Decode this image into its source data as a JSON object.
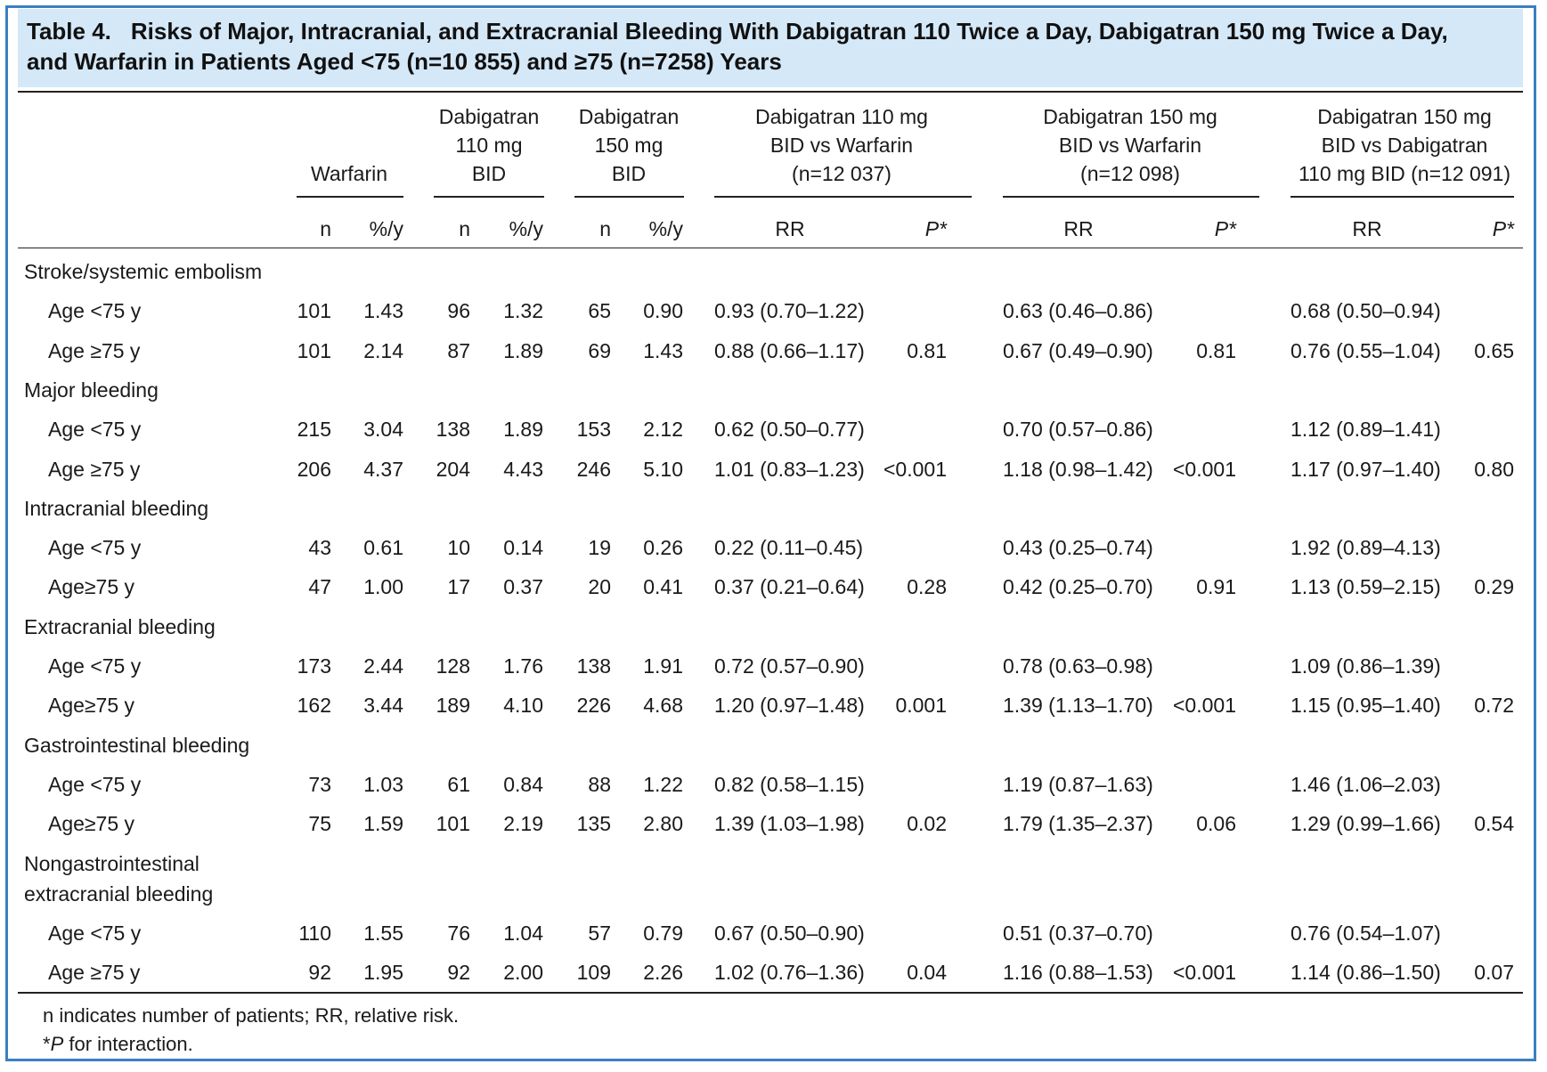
{
  "caption": {
    "number": "Table 4.",
    "line1": "Risks of Major, Intracranial, and Extracranial Bleeding With Dabigatran 110 Twice a Day, Dabigatran 150 mg Twice a Day,",
    "line2": "and Warfarin in Patients Aged <75 (n=10 855) and ≥75 (n=7258) Years"
  },
  "header": {
    "groups": [
      {
        "id": "warfarin",
        "lines": [
          "Warfarin"
        ]
      },
      {
        "id": "dab110",
        "lines": [
          "Dabigatran",
          "110 mg",
          "BID"
        ]
      },
      {
        "id": "dab150",
        "lines": [
          "Dabigatran",
          "150 mg",
          "BID"
        ]
      },
      {
        "id": "cmp1",
        "lines": [
          "Dabigatran 110 mg",
          "BID vs Warfarin",
          "(n=12 037)"
        ]
      },
      {
        "id": "cmp2",
        "lines": [
          "Dabigatran 150 mg",
          "BID vs Warfarin",
          "(n=12 098)"
        ]
      },
      {
        "id": "cmp3",
        "lines": [
          "Dabigatran 150 mg",
          "BID vs Dabigatran",
          "110 mg BID (n=12 091)"
        ]
      }
    ],
    "sub": {
      "n": "n",
      "rate": "%/y",
      "rr": "RR",
      "p": "P*"
    }
  },
  "sections": [
    {
      "title": [
        "Stroke/systemic embolism"
      ],
      "rows": [
        {
          "label": "Age <75 y",
          "w_n": "101",
          "w_r": "1.43",
          "d110_n": "96",
          "d110_r": "1.32",
          "d150_n": "65",
          "d150_r": "0.90",
          "rr1": "0.93 (0.70–1.22)",
          "p1": "",
          "rr2": "0.63 (0.46–0.86)",
          "p2": "",
          "rr3": "0.68 (0.50–0.94)",
          "p3": ""
        },
        {
          "label": "Age ≥75 y",
          "w_n": "101",
          "w_r": "2.14",
          "d110_n": "87",
          "d110_r": "1.89",
          "d150_n": "69",
          "d150_r": "1.43",
          "rr1": "0.88 (0.66–1.17)",
          "p1": "0.81",
          "rr2": "0.67 (0.49–0.90)",
          "p2": "0.81",
          "rr3": "0.76 (0.55–1.04)",
          "p3": "0.65"
        }
      ]
    },
    {
      "title": [
        "Major bleeding"
      ],
      "rows": [
        {
          "label": "Age <75 y",
          "w_n": "215",
          "w_r": "3.04",
          "d110_n": "138",
          "d110_r": "1.89",
          "d150_n": "153",
          "d150_r": "2.12",
          "rr1": "0.62 (0.50–0.77)",
          "p1": "",
          "rr2": "0.70 (0.57–0.86)",
          "p2": "",
          "rr3": "1.12 (0.89–1.41)",
          "p3": ""
        },
        {
          "label": "Age ≥75 y",
          "w_n": "206",
          "w_r": "4.37",
          "d110_n": "204",
          "d110_r": "4.43",
          "d150_n": "246",
          "d150_r": "5.10",
          "rr1": "1.01 (0.83–1.23)",
          "p1": "<0.001",
          "rr2": "1.18 (0.98–1.42)",
          "p2": "<0.001",
          "rr3": "1.17 (0.97–1.40)",
          "p3": "0.80"
        }
      ]
    },
    {
      "title": [
        "Intracranial bleeding"
      ],
      "rows": [
        {
          "label": "Age <75 y",
          "w_n": "43",
          "w_r": "0.61",
          "d110_n": "10",
          "d110_r": "0.14",
          "d150_n": "19",
          "d150_r": "0.26",
          "rr1": "0.22 (0.11–0.45)",
          "p1": "",
          "rr2": "0.43 (0.25–0.74)",
          "p2": "",
          "rr3": "1.92 (0.89–4.13)",
          "p3": ""
        },
        {
          "label": "Age≥75 y",
          "w_n": "47",
          "w_r": "1.00",
          "d110_n": "17",
          "d110_r": "0.37",
          "d150_n": "20",
          "d150_r": "0.41",
          "rr1": "0.37 (0.21–0.64)",
          "p1": "0.28",
          "rr2": "0.42 (0.25–0.70)",
          "p2": "0.91",
          "rr3": "1.13 (0.59–2.15)",
          "p3": "0.29"
        }
      ]
    },
    {
      "title": [
        "Extracranial bleeding"
      ],
      "rows": [
        {
          "label": "Age <75 y",
          "w_n": "173",
          "w_r": "2.44",
          "d110_n": "128",
          "d110_r": "1.76",
          "d150_n": "138",
          "d150_r": "1.91",
          "rr1": "0.72 (0.57–0.90)",
          "p1": "",
          "rr2": "0.78 (0.63–0.98)",
          "p2": "",
          "rr3": "1.09 (0.86–1.39)",
          "p3": ""
        },
        {
          "label": "Age≥75 y",
          "w_n": "162",
          "w_r": "3.44",
          "d110_n": "189",
          "d110_r": "4.10",
          "d150_n": "226",
          "d150_r": "4.68",
          "rr1": "1.20 (0.97–1.48)",
          "p1": "0.001",
          "rr2": "1.39 (1.13–1.70)",
          "p2": "<0.001",
          "rr3": "1.15 (0.95–1.40)",
          "p3": "0.72"
        }
      ]
    },
    {
      "title": [
        "Gastrointestinal bleeding"
      ],
      "rows": [
        {
          "label": "Age <75 y",
          "w_n": "73",
          "w_r": "1.03",
          "d110_n": "61",
          "d110_r": "0.84",
          "d150_n": "88",
          "d150_r": "1.22",
          "rr1": "0.82 (0.58–1.15)",
          "p1": "",
          "rr2": "1.19 (0.87–1.63)",
          "p2": "",
          "rr3": "1.46 (1.06–2.03)",
          "p3": ""
        },
        {
          "label": "Age≥75 y",
          "w_n": "75",
          "w_r": "1.59",
          "d110_n": "101",
          "d110_r": "2.19",
          "d150_n": "135",
          "d150_r": "2.80",
          "rr1": "1.39 (1.03–1.98)",
          "p1": "0.02",
          "rr2": "1.79 (1.35–2.37)",
          "p2": "0.06",
          "rr3": "1.29 (0.99–1.66)",
          "p3": "0.54"
        }
      ]
    },
    {
      "title": [
        "Nongastrointestinal",
        "extracranial bleeding"
      ],
      "rows": [
        {
          "label": "Age <75 y",
          "w_n": "110",
          "w_r": "1.55",
          "d110_n": "76",
          "d110_r": "1.04",
          "d150_n": "57",
          "d150_r": "0.79",
          "rr1": "0.67 (0.50–0.90)",
          "p1": "",
          "rr2": "0.51 (0.37–0.70)",
          "p2": "",
          "rr3": "0.76 (0.54–1.07)",
          "p3": ""
        },
        {
          "label": "Age ≥75 y",
          "w_n": "92",
          "w_r": "1.95",
          "d110_n": "92",
          "d110_r": "2.00",
          "d150_n": "109",
          "d150_r": "2.26",
          "rr1": "1.02 (0.76–1.36)",
          "p1": "0.04",
          "rr2": "1.16 (0.88–1.53)",
          "p2": "<0.001",
          "rr3": "1.14 (0.86–1.50)",
          "p3": "0.07"
        }
      ]
    }
  ],
  "footnotes": {
    "line1": "n indicates number of patients; RR, relative risk.",
    "line2_prefix": "*",
    "line2_italic": "P",
    "line2_rest": " for interaction."
  }
}
